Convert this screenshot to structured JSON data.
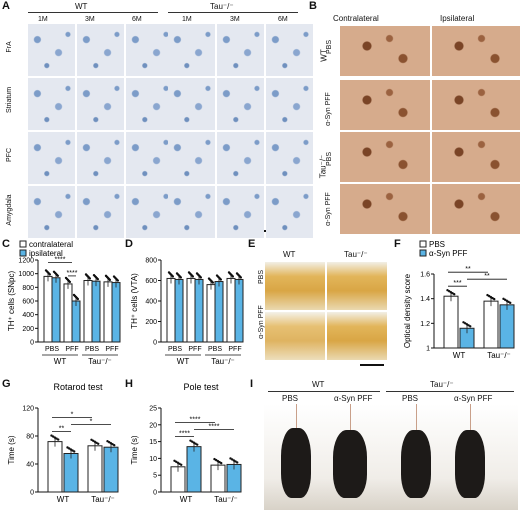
{
  "panel_letters": {
    "A": "A",
    "B": "B",
    "C": "C",
    "D": "D",
    "E": "E",
    "F": "F",
    "G": "G",
    "H": "H",
    "I": "I"
  },
  "panelA": {
    "genotypes": [
      "WT",
      "Tau⁻/⁻"
    ],
    "ages": [
      "1M",
      "3M",
      "6M",
      "1M",
      "3M",
      "6M"
    ],
    "regions": [
      "FrA",
      "Striatum",
      "PFC",
      "Amygdala"
    ]
  },
  "panelB": {
    "cols": [
      "Contralateral",
      "Ipsilateral"
    ],
    "rows": [
      "PBS",
      "α-Syn PFF",
      "PBS",
      "α-Syn PFF"
    ],
    "genotypes": [
      "WT",
      "Tau⁻/⁻"
    ]
  },
  "panelE": {
    "cols": [
      "WT",
      "Tau⁻/⁻"
    ],
    "rows": [
      "PBS",
      "α-Syn PFF"
    ]
  },
  "panelI": {
    "genotypes": [
      "WT",
      "Tau⁻/⁻"
    ],
    "conditions": [
      "PBS",
      "α-Syn PFF",
      "PBS",
      "α-Syn PFF"
    ]
  },
  "colors": {
    "pbs": "#ffffff",
    "pff": "#5ab4e5",
    "stroke": "#222222"
  },
  "chart_data": [
    {
      "id": "C",
      "type": "bar",
      "ylabel": "TH⁺ cells (SNpc)",
      "ylim": [
        0,
        1200
      ],
      "yticks": [
        0,
        200,
        400,
        600,
        800,
        1000,
        1200
      ],
      "group_labels": [
        "WT",
        "Tau⁻/⁻"
      ],
      "categories": [
        "PBS",
        "PFF",
        "PBS",
        "PFF"
      ],
      "legend": [
        "contralateral",
        "ipsilateral"
      ],
      "series": [
        {
          "name": "contralateral",
          "values": [
            960,
            850,
            900,
            880
          ]
        },
        {
          "name": "ipsilateral",
          "values": [
            940,
            600,
            890,
            870
          ]
        }
      ],
      "significance": [
        "****",
        "****"
      ]
    },
    {
      "id": "D",
      "type": "bar",
      "ylabel": "TH⁺ cells (VTA)",
      "ylim": [
        0,
        800
      ],
      "yticks": [
        0,
        200,
        400,
        600,
        800
      ],
      "group_labels": [
        "WT",
        "Tau⁻/⁻"
      ],
      "categories": [
        "PBS",
        "PFF",
        "PBS",
        "PFF"
      ],
      "series": [
        {
          "name": "contralateral",
          "values": [
            620,
            620,
            560,
            620
          ]
        },
        {
          "name": "ipsilateral",
          "values": [
            610,
            610,
            590,
            610
          ]
        }
      ]
    },
    {
      "id": "F",
      "type": "bar",
      "ylabel": "Optical density score",
      "ylim": [
        1.0,
        1.6
      ],
      "yticks": [
        1.0,
        1.2,
        1.4,
        1.6
      ],
      "group_labels": [
        "WT",
        "Tau⁻/⁻"
      ],
      "legend": [
        "PBS",
        "α-Syn PFF"
      ],
      "series": [
        {
          "name": "PBS",
          "values": [
            1.42,
            1.38
          ]
        },
        {
          "name": "α-Syn PFF",
          "values": [
            1.16,
            1.35
          ]
        }
      ],
      "significance": [
        "***",
        "**",
        "**"
      ]
    },
    {
      "id": "G",
      "type": "bar",
      "title": "Rotarod test",
      "ylabel": "Time (s)",
      "ylim": [
        0,
        120
      ],
      "yticks": [
        0,
        40,
        80,
        120
      ],
      "group_labels": [
        "WT",
        "Tau⁻/⁻"
      ],
      "series": [
        {
          "name": "PBS",
          "values": [
            72,
            66
          ]
        },
        {
          "name": "α-Syn PFF",
          "values": [
            55,
            64
          ]
        }
      ],
      "significance": [
        "**",
        "*",
        "*"
      ]
    },
    {
      "id": "H",
      "type": "bar",
      "title": "Pole test",
      "ylabel": "Time (s)",
      "ylim": [
        0,
        25
      ],
      "yticks": [
        0,
        5,
        10,
        15,
        20,
        25
      ],
      "group_labels": [
        "WT",
        "Tau⁻/⁻"
      ],
      "series": [
        {
          "name": "PBS",
          "values": [
            7.5,
            8.0
          ]
        },
        {
          "name": "α-Syn PFF",
          "values": [
            13.5,
            8.2
          ]
        }
      ],
      "significance": [
        "****",
        "****",
        "****"
      ]
    }
  ]
}
